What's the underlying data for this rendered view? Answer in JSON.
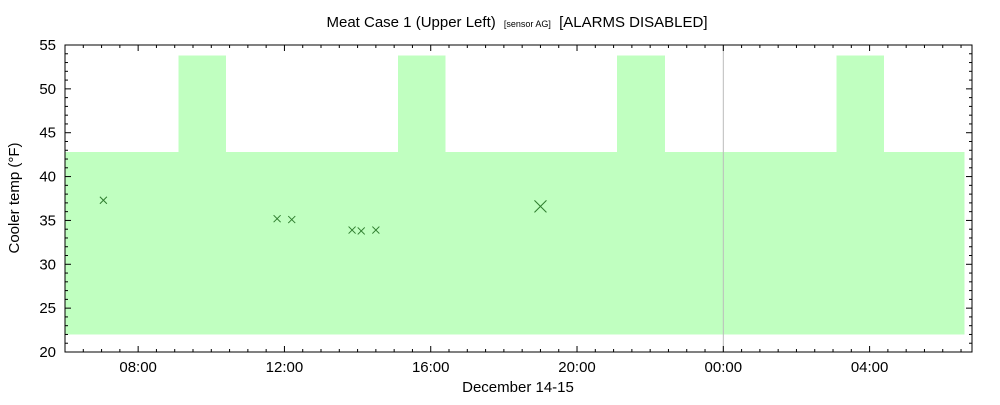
{
  "chart_data": {
    "type": "scatter",
    "title": "Meat Case 1 (Upper Left)",
    "title_sensor": "[sensor AG]",
    "title_suffix": "[ALARMS DISABLED]",
    "xlabel": "December 14-15",
    "ylabel": "Cooler temp (°F)",
    "xlim_hours": [
      6.0,
      30.8
    ],
    "ylim": [
      20,
      55
    ],
    "yticks": [
      20,
      25,
      30,
      35,
      40,
      45,
      50,
      55
    ],
    "xticks": [
      {
        "hour": 8,
        "label": "08:00"
      },
      {
        "hour": 12,
        "label": "12:00"
      },
      {
        "hour": 16,
        "label": "16:00"
      },
      {
        "hour": 20,
        "label": "20:00"
      },
      {
        "hour": 24,
        "label": "00:00"
      },
      {
        "hour": 28,
        "label": "04:00"
      }
    ],
    "midnight_line_hour": 24,
    "band_color": "#c0ffc0",
    "marker_color": "#2e7d2e",
    "band": [
      {
        "x0": 6.0,
        "x1": 9.1,
        "ymin": 22,
        "ymax": 42.8
      },
      {
        "x0": 9.1,
        "x1": 10.4,
        "ymin": 22,
        "ymax": 53.8
      },
      {
        "x0": 10.4,
        "x1": 15.1,
        "ymin": 22,
        "ymax": 42.8
      },
      {
        "x0": 15.1,
        "x1": 16.4,
        "ymin": 22,
        "ymax": 53.8
      },
      {
        "x0": 16.4,
        "x1": 21.1,
        "ymin": 22,
        "ymax": 42.8
      },
      {
        "x0": 21.1,
        "x1": 22.4,
        "ymin": 22,
        "ymax": 53.8
      },
      {
        "x0": 22.4,
        "x1": 27.1,
        "ymin": 22,
        "ymax": 42.8
      },
      {
        "x0": 27.1,
        "x1": 28.4,
        "ymin": 22,
        "ymax": 53.8
      },
      {
        "x0": 28.4,
        "x1": 30.6,
        "ymin": 22,
        "ymax": 42.8
      }
    ],
    "points": [
      {
        "hour": 7.05,
        "value": 37.3,
        "size": "small"
      },
      {
        "hour": 11.8,
        "value": 35.2,
        "size": "small"
      },
      {
        "hour": 12.2,
        "value": 35.1,
        "size": "small"
      },
      {
        "hour": 13.85,
        "value": 33.9,
        "size": "small"
      },
      {
        "hour": 14.1,
        "value": 33.8,
        "size": "small"
      },
      {
        "hour": 14.5,
        "value": 33.9,
        "size": "small"
      },
      {
        "hour": 19.0,
        "value": 36.6,
        "size": "large"
      }
    ]
  }
}
